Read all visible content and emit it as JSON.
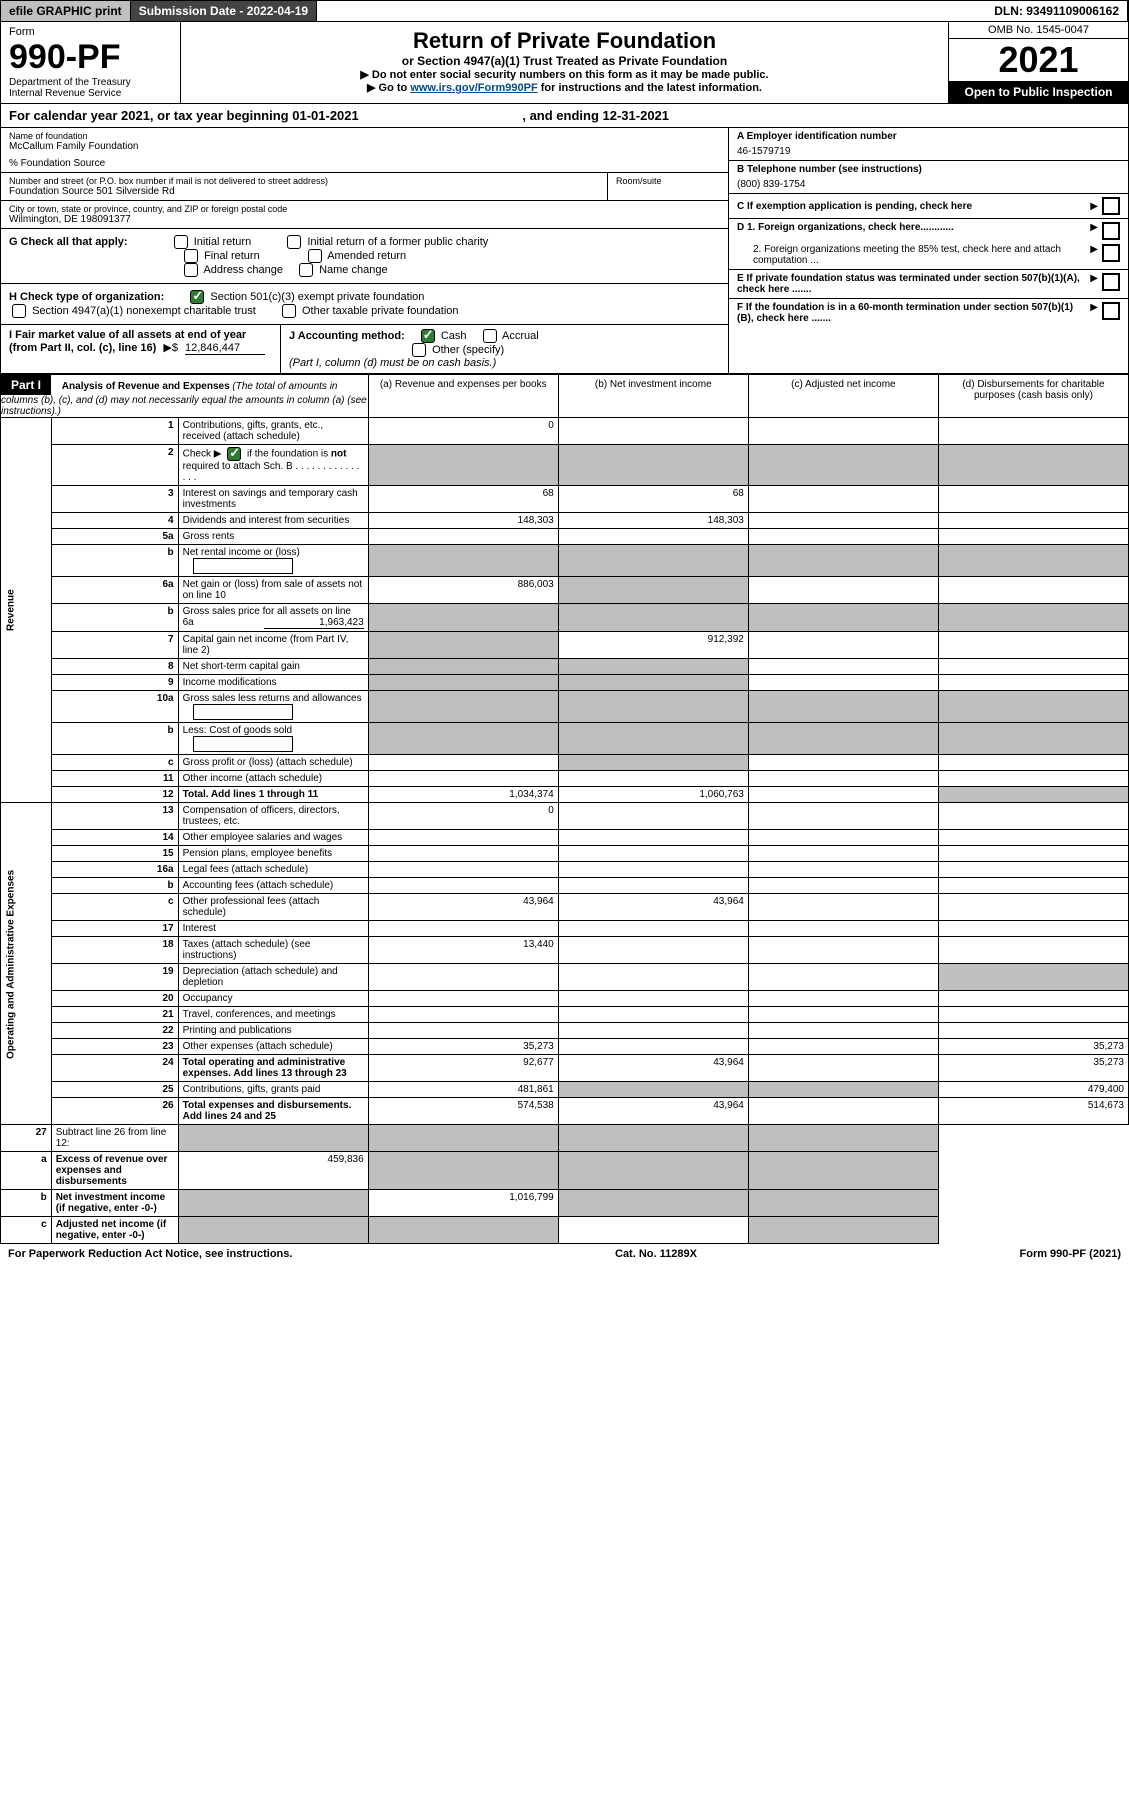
{
  "topbar": {
    "efile": "efile GRAPHIC print",
    "subdate_label": "Submission Date - 2022-04-19",
    "dln": "DLN: 93491109006162"
  },
  "header": {
    "form_label": "Form",
    "form_no": "990-PF",
    "dept": "Department of the Treasury",
    "irs": "Internal Revenue Service",
    "title": "Return of Private Foundation",
    "subtitle": "or Section 4947(a)(1) Trust Treated as Private Foundation",
    "note1": "▶ Do not enter social security numbers on this form as it may be made public.",
    "note2_pre": "▶ Go to ",
    "note2_link": "www.irs.gov/Form990PF",
    "note2_post": " for instructions and the latest information.",
    "omb": "OMB No. 1545-0047",
    "year": "2021",
    "open": "Open to Public Inspection"
  },
  "calyear": {
    "text_pre": "For calendar year 2021, or tax year beginning ",
    "begin": "01-01-2021",
    "mid": " , and ending ",
    "end": "12-31-2021"
  },
  "info": {
    "name_label": "Name of foundation",
    "name": "McCallum Family Foundation",
    "care": "% Foundation Source",
    "addr_label": "Number and street (or P.O. box number if mail is not delivered to street address)",
    "addr": "Foundation Source 501 Silverside Rd",
    "room_label": "Room/suite",
    "city_label": "City or town, state or province, country, and ZIP or foreign postal code",
    "city": "Wilmington, DE  198091377",
    "a_label": "A Employer identification number",
    "a_val": "46-1579719",
    "b_label": "B Telephone number (see instructions)",
    "b_val": "(800) 839-1754",
    "c_label": "C If exemption application is pending, check here",
    "d1": "D 1. Foreign organizations, check here............",
    "d2": "2. Foreign organizations meeting the 85% test, check here and attach computation ...",
    "e": "E  If private foundation status was terminated under section 507(b)(1)(A), check here .......",
    "f": "F  If the foundation is in a 60-month termination under section 507(b)(1)(B), check here .......",
    "g_label": "G Check all that apply:",
    "g_initial": "Initial return",
    "g_final": "Final return",
    "g_addr": "Address change",
    "g_initial_former": "Initial return of a former public charity",
    "g_amended": "Amended return",
    "g_name": "Name change",
    "h_label": "H Check type of organization:",
    "h_501c3": "Section 501(c)(3) exempt private foundation",
    "h_4947": "Section 4947(a)(1) nonexempt charitable trust",
    "h_other_tax": "Other taxable private foundation",
    "i_label": "I Fair market value of all assets at end of year (from Part II, col. (c), line 16)",
    "i_val": "12,846,447",
    "j_label": "J Accounting method:",
    "j_cash": "Cash",
    "j_accrual": "Accrual",
    "j_other": "Other (specify)",
    "j_note": "(Part I, column (d) must be on cash basis.)"
  },
  "part1": {
    "label": "Part I",
    "title": "Analysis of Revenue and Expenses",
    "title_note": " (The total of amounts in columns (b), (c), and (d) may not necessarily equal the amounts in column (a) (see instructions).)",
    "col_a": "(a)   Revenue and expenses per books",
    "col_b": "(b)   Net investment income",
    "col_c": "(c)   Adjusted net income",
    "col_d": "(d)   Disbursements for charitable purposes (cash basis only)"
  },
  "sides": {
    "revenue": "Revenue",
    "expenses": "Operating and Administrative Expenses"
  },
  "rows": [
    {
      "n": "1",
      "desc": "Contributions, gifts, grants, etc., received (attach schedule)",
      "a": "0",
      "b": "",
      "c": "",
      "d": ""
    },
    {
      "n": "2",
      "desc": "Check ▶ ☑ if the foundation is not required to attach Sch. B",
      "a": "",
      "b": "",
      "c": "",
      "d": "",
      "grey_bcd": true,
      "grey_a": true
    },
    {
      "n": "3",
      "desc": "Interest on savings and temporary cash investments",
      "a": "68",
      "b": "68",
      "c": "",
      "d": ""
    },
    {
      "n": "4",
      "desc": "Dividends and interest from securities",
      "a": "148,303",
      "b": "148,303",
      "c": "",
      "d": ""
    },
    {
      "n": "5a",
      "desc": "Gross rents",
      "a": "",
      "b": "",
      "c": "",
      "d": ""
    },
    {
      "n": "b",
      "desc": "Net rental income or (loss)",
      "a": "",
      "b": "",
      "c": "",
      "d": "",
      "grey_abcd": true,
      "inline_box": true
    },
    {
      "n": "6a",
      "desc": "Net gain or (loss) from sale of assets not on line 10",
      "a": "886,003",
      "b": "",
      "c": "",
      "d": "",
      "grey_b": true
    },
    {
      "n": "b",
      "desc": "Gross sales price for all assets on line 6a",
      "inline_val": "1,963,423",
      "a": "",
      "b": "",
      "c": "",
      "d": "",
      "grey_abcd": true
    },
    {
      "n": "7",
      "desc": "Capital gain net income (from Part IV, line 2)",
      "a": "",
      "b": "912,392",
      "c": "",
      "d": "",
      "grey_a": true
    },
    {
      "n": "8",
      "desc": "Net short-term capital gain",
      "a": "",
      "b": "",
      "c": "",
      "d": "",
      "grey_ab": true
    },
    {
      "n": "9",
      "desc": "Income modifications",
      "a": "",
      "b": "",
      "c": "",
      "d": "",
      "grey_ab": true
    },
    {
      "n": "10a",
      "desc": "Gross sales less returns and allowances",
      "a": "",
      "b": "",
      "c": "",
      "d": "",
      "grey_abcd": true,
      "inline_box": true
    },
    {
      "n": "b",
      "desc": "Less: Cost of goods sold",
      "a": "",
      "b": "",
      "c": "",
      "d": "",
      "grey_abcd": true,
      "inline_box": true
    },
    {
      "n": "c",
      "desc": "Gross profit or (loss) (attach schedule)",
      "a": "",
      "b": "",
      "c": "",
      "d": "",
      "grey_b": true
    },
    {
      "n": "11",
      "desc": "Other income (attach schedule)",
      "a": "",
      "b": "",
      "c": "",
      "d": ""
    },
    {
      "n": "12",
      "desc": "Total. Add lines 1 through 11",
      "a": "1,034,374",
      "b": "1,060,763",
      "c": "",
      "d": "",
      "bold": true,
      "grey_d": true
    }
  ],
  "exp_rows": [
    {
      "n": "13",
      "desc": "Compensation of officers, directors, trustees, etc.",
      "a": "0",
      "b": "",
      "c": "",
      "d": ""
    },
    {
      "n": "14",
      "desc": "Other employee salaries and wages",
      "a": "",
      "b": "",
      "c": "",
      "d": ""
    },
    {
      "n": "15",
      "desc": "Pension plans, employee benefits",
      "a": "",
      "b": "",
      "c": "",
      "d": ""
    },
    {
      "n": "16a",
      "desc": "Legal fees (attach schedule)",
      "a": "",
      "b": "",
      "c": "",
      "d": ""
    },
    {
      "n": "b",
      "desc": "Accounting fees (attach schedule)",
      "a": "",
      "b": "",
      "c": "",
      "d": ""
    },
    {
      "n": "c",
      "desc": "Other professional fees (attach schedule)",
      "a": "43,964",
      "b": "43,964",
      "c": "",
      "d": ""
    },
    {
      "n": "17",
      "desc": "Interest",
      "a": "",
      "b": "",
      "c": "",
      "d": ""
    },
    {
      "n": "18",
      "desc": "Taxes (attach schedule) (see instructions)",
      "a": "13,440",
      "b": "",
      "c": "",
      "d": ""
    },
    {
      "n": "19",
      "desc": "Depreciation (attach schedule) and depletion",
      "a": "",
      "b": "",
      "c": "",
      "d": "",
      "grey_d": true
    },
    {
      "n": "20",
      "desc": "Occupancy",
      "a": "",
      "b": "",
      "c": "",
      "d": ""
    },
    {
      "n": "21",
      "desc": "Travel, conferences, and meetings",
      "a": "",
      "b": "",
      "c": "",
      "d": ""
    },
    {
      "n": "22",
      "desc": "Printing and publications",
      "a": "",
      "b": "",
      "c": "",
      "d": ""
    },
    {
      "n": "23",
      "desc": "Other expenses (attach schedule)",
      "a": "35,273",
      "b": "",
      "c": "",
      "d": "35,273"
    },
    {
      "n": "24",
      "desc": "Total operating and administrative expenses. Add lines 13 through 23",
      "a": "92,677",
      "b": "43,964",
      "c": "",
      "d": "35,273",
      "bold": true
    },
    {
      "n": "25",
      "desc": "Contributions, gifts, grants paid",
      "a": "481,861",
      "b": "",
      "c": "",
      "d": "479,400",
      "grey_bc": true
    },
    {
      "n": "26",
      "desc": "Total expenses and disbursements. Add lines 24 and 25",
      "a": "574,538",
      "b": "43,964",
      "c": "",
      "d": "514,673",
      "bold": true
    }
  ],
  "final_rows": [
    {
      "n": "27",
      "desc": "Subtract line 26 from line 12:",
      "a": "",
      "b": "",
      "c": "",
      "d": "",
      "grey_abcd": true
    },
    {
      "n": "a",
      "desc": "Excess of revenue over expenses and disbursements",
      "a": "459,836",
      "b": "",
      "c": "",
      "d": "",
      "bold": true,
      "grey_bcd": true
    },
    {
      "n": "b",
      "desc": "Net investment income (if negative, enter -0-)",
      "a": "",
      "b": "1,016,799",
      "c": "",
      "d": "",
      "bold": true,
      "grey_acd": true
    },
    {
      "n": "c",
      "desc": "Adjusted net income (if negative, enter -0-)",
      "a": "",
      "b": "",
      "c": "",
      "d": "",
      "bold": true,
      "grey_abd": true
    }
  ],
  "footer": {
    "left": "For Paperwork Reduction Act Notice, see instructions.",
    "mid": "Cat. No. 11289X",
    "right": "Form 990-PF (2021)"
  }
}
